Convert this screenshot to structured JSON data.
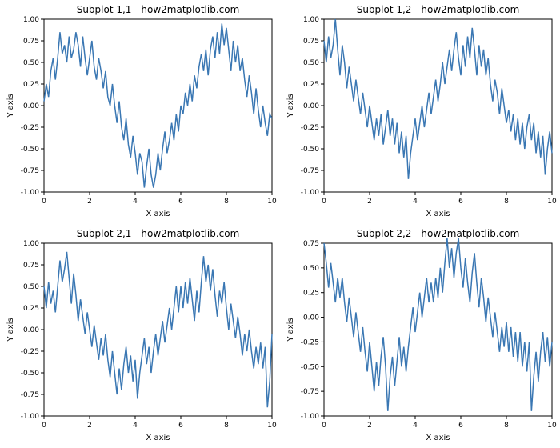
{
  "global": {
    "background_color": "#ffffff",
    "line_color": "#3a77b3",
    "axis_color": "#000000",
    "tick_color": "#000000",
    "font_family": "DejaVu Sans, Arial, sans-serif",
    "title_fontsize": 12,
    "label_fontsize": 10,
    "tick_fontsize": 9,
    "line_width": 1.5,
    "grid_color": "#e0e0e0",
    "grid": false,
    "xlim": [
      0,
      10
    ],
    "xtick_step": 2,
    "xticks": [
      0,
      2,
      4,
      6,
      8,
      10
    ],
    "xlabel": "X axis",
    "ylabel": "Y axis"
  },
  "panels": [
    {
      "title": "Subplot 1,1 - how2matplotlib.com",
      "type": "line",
      "ylim": [
        -1.0,
        1.0
      ],
      "ytick_step": 0.25,
      "yticks": [
        -1.0,
        -0.75,
        -0.5,
        -0.25,
        0.0,
        0.25,
        0.5,
        0.75,
        1.0
      ],
      "x": [
        0,
        0.1,
        0.2,
        0.3,
        0.4,
        0.5,
        0.6,
        0.7,
        0.8,
        0.9,
        1,
        1.1,
        1.2,
        1.3,
        1.4,
        1.5,
        1.6,
        1.7,
        1.8,
        1.9,
        2,
        2.1,
        2.2,
        2.3,
        2.4,
        2.5,
        2.6,
        2.7,
        2.8,
        2.9,
        3,
        3.1,
        3.2,
        3.3,
        3.4,
        3.5,
        3.6,
        3.7,
        3.8,
        3.9,
        4,
        4.1,
        4.2,
        4.3,
        4.4,
        4.5,
        4.6,
        4.7,
        4.8,
        4.9,
        5,
        5.1,
        5.2,
        5.3,
        5.4,
        5.5,
        5.6,
        5.7,
        5.8,
        5.9,
        6,
        6.1,
        6.2,
        6.3,
        6.4,
        6.5,
        6.6,
        6.7,
        6.8,
        6.9,
        7,
        7.1,
        7.2,
        7.3,
        7.4,
        7.5,
        7.6,
        7.7,
        7.8,
        7.9,
        8,
        8.1,
        8.2,
        8.3,
        8.4,
        8.5,
        8.6,
        8.7,
        8.8,
        8.9,
        9,
        9.1,
        9.2,
        9.3,
        9.4,
        9.5,
        9.6,
        9.7,
        9.8,
        9.9,
        10
      ],
      "y": [
        0.05,
        0.25,
        0.1,
        0.4,
        0.55,
        0.3,
        0.55,
        0.85,
        0.6,
        0.7,
        0.5,
        0.8,
        0.55,
        0.65,
        0.85,
        0.7,
        0.45,
        0.8,
        0.55,
        0.35,
        0.55,
        0.75,
        0.45,
        0.3,
        0.55,
        0.4,
        0.2,
        0.4,
        0.1,
        0.0,
        0.25,
        0.0,
        -0.2,
        0.05,
        -0.25,
        -0.4,
        -0.15,
        -0.45,
        -0.6,
        -0.35,
        -0.55,
        -0.8,
        -0.55,
        -0.65,
        -0.95,
        -0.7,
        -0.5,
        -0.8,
        -0.95,
        -0.8,
        -0.55,
        -0.75,
        -0.5,
        -0.3,
        -0.55,
        -0.4,
        -0.2,
        -0.4,
        -0.1,
        -0.3,
        0.0,
        -0.1,
        0.15,
        0.0,
        0.25,
        0.05,
        0.35,
        0.2,
        0.45,
        0.6,
        0.4,
        0.65,
        0.35,
        0.65,
        0.8,
        0.55,
        0.85,
        0.6,
        0.95,
        0.7,
        0.9,
        0.65,
        0.4,
        0.75,
        0.5,
        0.7,
        0.4,
        0.55,
        0.3,
        0.1,
        0.35,
        0.15,
        -0.1,
        0.2,
        -0.05,
        -0.25,
        0.0,
        -0.2,
        -0.35,
        -0.1,
        -0.15
      ]
    },
    {
      "title": "Subplot 1,2 - how2matplotlib.com",
      "type": "line",
      "ylim": [
        -1.0,
        1.0
      ],
      "ytick_step": 0.25,
      "yticks": [
        -1.0,
        -0.75,
        -0.5,
        -0.25,
        0.0,
        0.25,
        0.5,
        0.75,
        1.0
      ],
      "x": [
        0,
        0.1,
        0.2,
        0.3,
        0.4,
        0.5,
        0.6,
        0.7,
        0.8,
        0.9,
        1,
        1.1,
        1.2,
        1.3,
        1.4,
        1.5,
        1.6,
        1.7,
        1.8,
        1.9,
        2,
        2.1,
        2.2,
        2.3,
        2.4,
        2.5,
        2.6,
        2.7,
        2.8,
        2.9,
        3,
        3.1,
        3.2,
        3.3,
        3.4,
        3.5,
        3.6,
        3.7,
        3.8,
        3.9,
        4,
        4.1,
        4.2,
        4.3,
        4.4,
        4.5,
        4.6,
        4.7,
        4.8,
        4.9,
        5,
        5.1,
        5.2,
        5.3,
        5.4,
        5.5,
        5.6,
        5.7,
        5.8,
        5.9,
        6,
        6.1,
        6.2,
        6.3,
        6.4,
        6.5,
        6.6,
        6.7,
        6.8,
        6.9,
        7,
        7.1,
        7.2,
        7.3,
        7.4,
        7.5,
        7.6,
        7.7,
        7.8,
        7.9,
        8,
        8.1,
        8.2,
        8.3,
        8.4,
        8.5,
        8.6,
        8.7,
        8.8,
        8.9,
        9,
        9.1,
        9.2,
        9.3,
        9.4,
        9.5,
        9.6,
        9.7,
        9.8,
        9.9,
        10
      ],
      "y": [
        0.75,
        0.5,
        0.8,
        0.55,
        0.7,
        1.0,
        0.65,
        0.35,
        0.7,
        0.5,
        0.2,
        0.45,
        0.25,
        0.05,
        0.3,
        0.1,
        -0.1,
        0.15,
        -0.05,
        -0.25,
        0.0,
        -0.2,
        -0.4,
        -0.15,
        -0.35,
        -0.1,
        -0.45,
        -0.25,
        -0.05,
        -0.35,
        -0.15,
        -0.45,
        -0.2,
        -0.55,
        -0.3,
        -0.6,
        -0.35,
        -0.85,
        -0.55,
        -0.35,
        -0.15,
        -0.4,
        -0.2,
        0.0,
        -0.25,
        -0.05,
        0.15,
        -0.1,
        0.1,
        0.3,
        0.05,
        0.25,
        0.5,
        0.25,
        0.45,
        0.65,
        0.4,
        0.65,
        0.85,
        0.55,
        0.35,
        0.7,
        0.45,
        0.8,
        0.55,
        0.9,
        0.65,
        0.35,
        0.7,
        0.45,
        0.65,
        0.35,
        0.55,
        0.25,
        0.05,
        0.3,
        0.15,
        -0.1,
        0.2,
        0.0,
        -0.2,
        -0.05,
        -0.3,
        -0.1,
        -0.4,
        -0.15,
        -0.45,
        -0.2,
        -0.5,
        -0.25,
        -0.1,
        -0.4,
        -0.2,
        -0.55,
        -0.3,
        -0.6,
        -0.35,
        -0.8,
        -0.5,
        -0.3,
        -0.55
      ]
    },
    {
      "title": "Subplot 2,1 - how2matplotlib.com",
      "type": "line",
      "ylim": [
        -1.0,
        1.0
      ],
      "ytick_step": 0.25,
      "yticks": [
        -1.0,
        -0.75,
        -0.5,
        -0.25,
        0.0,
        0.25,
        0.5,
        0.75,
        1.0
      ],
      "x": [
        0,
        0.1,
        0.2,
        0.3,
        0.4,
        0.5,
        0.6,
        0.7,
        0.8,
        0.9,
        1,
        1.1,
        1.2,
        1.3,
        1.4,
        1.5,
        1.6,
        1.7,
        1.8,
        1.9,
        2,
        2.1,
        2.2,
        2.3,
        2.4,
        2.5,
        2.6,
        2.7,
        2.8,
        2.9,
        3,
        3.1,
        3.2,
        3.3,
        3.4,
        3.5,
        3.6,
        3.7,
        3.8,
        3.9,
        4,
        4.1,
        4.2,
        4.3,
        4.4,
        4.5,
        4.6,
        4.7,
        4.8,
        4.9,
        5,
        5.1,
        5.2,
        5.3,
        5.4,
        5.5,
        5.6,
        5.7,
        5.8,
        5.9,
        6,
        6.1,
        6.2,
        6.3,
        6.4,
        6.5,
        6.6,
        6.7,
        6.8,
        6.9,
        7,
        7.1,
        7.2,
        7.3,
        7.4,
        7.5,
        7.6,
        7.7,
        7.8,
        7.9,
        8,
        8.1,
        8.2,
        8.3,
        8.4,
        8.5,
        8.6,
        8.7,
        8.8,
        8.9,
        9,
        9.1,
        9.2,
        9.3,
        9.4,
        9.5,
        9.6,
        9.7,
        9.8,
        9.9,
        10
      ],
      "y": [
        0.5,
        0.25,
        0.55,
        0.3,
        0.45,
        0.2,
        0.5,
        0.8,
        0.55,
        0.7,
        0.9,
        0.6,
        0.3,
        0.65,
        0.4,
        0.1,
        0.35,
        0.15,
        -0.05,
        0.2,
        0.0,
        -0.2,
        0.05,
        -0.15,
        -0.35,
        -0.1,
        -0.3,
        -0.05,
        -0.35,
        -0.55,
        -0.25,
        -0.5,
        -0.75,
        -0.45,
        -0.7,
        -0.4,
        -0.2,
        -0.5,
        -0.3,
        -0.6,
        -0.35,
        -0.8,
        -0.5,
        -0.3,
        -0.1,
        -0.4,
        -0.2,
        -0.5,
        -0.25,
        -0.05,
        -0.3,
        -0.1,
        0.1,
        -0.15,
        0.05,
        0.25,
        0.0,
        0.25,
        0.5,
        0.2,
        0.5,
        0.25,
        0.55,
        0.3,
        0.6,
        0.35,
        0.1,
        0.45,
        0.2,
        0.55,
        0.85,
        0.55,
        0.75,
        0.45,
        0.7,
        0.4,
        0.15,
        0.45,
        0.3,
        0.55,
        0.25,
        0.0,
        0.3,
        0.1,
        -0.1,
        0.15,
        -0.05,
        -0.3,
        -0.05,
        -0.25,
        0.0,
        -0.25,
        -0.45,
        -0.2,
        -0.4,
        -0.15,
        -0.45,
        -0.2,
        -0.9,
        -0.6,
        -0.05
      ]
    },
    {
      "title": "Subplot 2,2 - how2matplotlib.com",
      "type": "line",
      "ylim": [
        -1.0,
        0.75
      ],
      "ytick_step": 0.25,
      "yticks": [
        -1.0,
        -0.75,
        -0.5,
        -0.25,
        0.0,
        0.25,
        0.5,
        0.75
      ],
      "x": [
        0,
        0.1,
        0.2,
        0.3,
        0.4,
        0.5,
        0.6,
        0.7,
        0.8,
        0.9,
        1,
        1.1,
        1.2,
        1.3,
        1.4,
        1.5,
        1.6,
        1.7,
        1.8,
        1.9,
        2,
        2.1,
        2.2,
        2.3,
        2.4,
        2.5,
        2.6,
        2.7,
        2.8,
        2.9,
        3,
        3.1,
        3.2,
        3.3,
        3.4,
        3.5,
        3.6,
        3.7,
        3.8,
        3.9,
        4,
        4.1,
        4.2,
        4.3,
        4.4,
        4.5,
        4.6,
        4.7,
        4.8,
        4.9,
        5,
        5.1,
        5.2,
        5.3,
        5.4,
        5.5,
        5.6,
        5.7,
        5.8,
        5.9,
        6,
        6.1,
        6.2,
        6.3,
        6.4,
        6.5,
        6.6,
        6.7,
        6.8,
        6.9,
        7,
        7.1,
        7.2,
        7.3,
        7.4,
        7.5,
        7.6,
        7.7,
        7.8,
        7.9,
        8,
        8.1,
        8.2,
        8.3,
        8.4,
        8.5,
        8.6,
        8.7,
        8.8,
        8.9,
        9,
        9.1,
        9.2,
        9.3,
        9.4,
        9.5,
        9.6,
        9.7,
        9.8,
        9.9,
        10
      ],
      "y": [
        0.75,
        0.55,
        0.3,
        0.55,
        0.35,
        0.15,
        0.4,
        0.2,
        0.4,
        0.15,
        -0.05,
        0.2,
        0.0,
        -0.2,
        0.05,
        -0.15,
        -0.35,
        -0.1,
        -0.35,
        -0.55,
        -0.25,
        -0.5,
        -0.75,
        -0.45,
        -0.7,
        -0.4,
        -0.2,
        -0.5,
        -0.95,
        -0.6,
        -0.4,
        -0.7,
        -0.45,
        -0.2,
        -0.5,
        -0.3,
        -0.55,
        -0.3,
        -0.1,
        0.1,
        -0.15,
        0.05,
        0.25,
        0.0,
        0.2,
        0.4,
        0.15,
        0.35,
        0.15,
        0.4,
        0.2,
        0.5,
        0.25,
        0.55,
        0.8,
        0.5,
        0.7,
        0.4,
        0.65,
        0.8,
        0.5,
        0.3,
        0.6,
        0.35,
        0.15,
        0.45,
        0.65,
        0.35,
        0.1,
        0.4,
        0.2,
        -0.05,
        0.2,
        0.0,
        -0.2,
        0.05,
        -0.15,
        -0.35,
        -0.1,
        -0.3,
        -0.05,
        -0.35,
        -0.1,
        -0.4,
        -0.15,
        -0.45,
        -0.15,
        -0.5,
        -0.25,
        -0.55,
        -0.25,
        -0.95,
        -0.6,
        -0.35,
        -0.65,
        -0.35,
        -0.15,
        -0.45,
        -0.2,
        -0.5,
        -0.25
      ]
    }
  ]
}
